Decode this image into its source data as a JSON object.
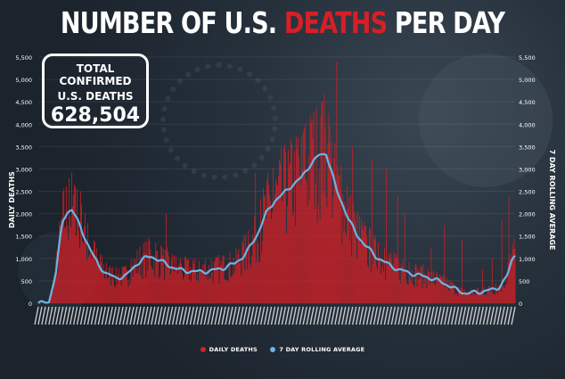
{
  "title": {
    "part1": "NUMBER OF U.S. ",
    "part2": "DEATHS",
    "part3": " PER DAY"
  },
  "total_box": {
    "line1": "TOTAL CONFIRMED",
    "line2": "U.S. DEATHS",
    "value": "628,504"
  },
  "colors": {
    "bars": "#d61f26",
    "rolling": "#6cb4e4",
    "title_accent": "#d61f26"
  },
  "chart_data": {
    "type": "bar",
    "ylabel": "DAILY DEATHS",
    "y2label": "7 DAY ROLLING AVERAGE",
    "ylim": [
      0,
      5500
    ],
    "y_ticks": [
      "0",
      "500",
      "1,000",
      "1,500",
      "2,000",
      "2,500",
      "3,000",
      "3,500",
      "4,000",
      "4,500",
      "5,000",
      "5,500"
    ],
    "legend": {
      "position": "bottom-center",
      "entries": [
        "DAILY DEATHS",
        "7 DAY ROLLING AVERAGE"
      ]
    },
    "x_range": [
      "early Mar 2020",
      "mid Aug 2021"
    ],
    "series": [
      {
        "name": "DAILY DEATHS",
        "kind": "bar",
        "profile_knots": [
          [
            0,
            0
          ],
          [
            5,
            0
          ],
          [
            12,
            30
          ],
          [
            20,
            700
          ],
          [
            27,
            1800
          ],
          [
            33,
            2050
          ],
          [
            38,
            2100
          ],
          [
            44,
            1850
          ],
          [
            52,
            1500
          ],
          [
            60,
            1150
          ],
          [
            68,
            850
          ],
          [
            78,
            650
          ],
          [
            88,
            560
          ],
          [
            100,
            620
          ],
          [
            110,
            850
          ],
          [
            118,
            980
          ],
          [
            128,
            1050
          ],
          [
            135,
            980
          ],
          [
            145,
            870
          ],
          [
            155,
            780
          ],
          [
            165,
            720
          ],
          [
            172,
            720
          ],
          [
            180,
            700
          ],
          [
            195,
            720
          ],
          [
            210,
            790
          ],
          [
            222,
            880
          ],
          [
            235,
            1100
          ],
          [
            247,
            1500
          ],
          [
            258,
            2000
          ],
          [
            268,
            2300
          ],
          [
            278,
            2450
          ],
          [
            288,
            2650
          ],
          [
            298,
            2800
          ],
          [
            308,
            3100
          ],
          [
            318,
            3300
          ],
          [
            326,
            3350
          ],
          [
            332,
            2950
          ],
          [
            338,
            2500
          ],
          [
            345,
            2200
          ],
          [
            352,
            1850
          ],
          [
            360,
            1550
          ],
          [
            370,
            1300
          ],
          [
            382,
            1050
          ],
          [
            395,
            880
          ],
          [
            408,
            750
          ],
          [
            420,
            680
          ],
          [
            432,
            620
          ],
          [
            445,
            560
          ],
          [
            455,
            480
          ],
          [
            465,
            400
          ],
          [
            475,
            280
          ],
          [
            485,
            220
          ],
          [
            495,
            240
          ],
          [
            505,
            270
          ],
          [
            515,
            300
          ],
          [
            523,
            380
          ],
          [
            531,
            600
          ],
          [
            537,
            1000
          ],
          [
            540,
            1100
          ]
        ],
        "spikes": [
          [
            44,
            2550
          ],
          [
            48,
            2500
          ],
          [
            145,
            2000
          ],
          [
            246,
            2900
          ],
          [
            302,
            4000
          ],
          [
            310,
            4100
          ],
          [
            320,
            4200
          ],
          [
            338,
            5400
          ],
          [
            356,
            3500
          ],
          [
            378,
            3200
          ],
          [
            394,
            3000
          ],
          [
            407,
            2400
          ],
          [
            415,
            2000
          ],
          [
            445,
            1250
          ],
          [
            460,
            1750
          ],
          [
            480,
            1400
          ],
          [
            503,
            750
          ],
          [
            514,
            1000
          ],
          [
            525,
            1850
          ],
          [
            533,
            2400
          ]
        ]
      },
      {
        "name": "7 DAY ROLLING AVERAGE",
        "kind": "line",
        "profile_knots": [
          [
            0,
            0
          ],
          [
            5,
            0
          ],
          [
            12,
            30
          ],
          [
            20,
            700
          ],
          [
            27,
            1800
          ],
          [
            33,
            2050
          ],
          [
            38,
            2100
          ],
          [
            44,
            1850
          ],
          [
            52,
            1500
          ],
          [
            60,
            1150
          ],
          [
            68,
            850
          ],
          [
            78,
            650
          ],
          [
            88,
            560
          ],
          [
            100,
            620
          ],
          [
            110,
            850
          ],
          [
            118,
            980
          ],
          [
            128,
            1050
          ],
          [
            135,
            980
          ],
          [
            145,
            870
          ],
          [
            155,
            780
          ],
          [
            165,
            720
          ],
          [
            172,
            720
          ],
          [
            180,
            700
          ],
          [
            195,
            720
          ],
          [
            210,
            790
          ],
          [
            222,
            880
          ],
          [
            235,
            1100
          ],
          [
            247,
            1500
          ],
          [
            258,
            2000
          ],
          [
            268,
            2300
          ],
          [
            278,
            2450
          ],
          [
            288,
            2650
          ],
          [
            298,
            2800
          ],
          [
            308,
            3100
          ],
          [
            318,
            3300
          ],
          [
            326,
            3350
          ],
          [
            332,
            2950
          ],
          [
            338,
            2500
          ],
          [
            345,
            2200
          ],
          [
            352,
            1850
          ],
          [
            360,
            1550
          ],
          [
            370,
            1300
          ],
          [
            382,
            1050
          ],
          [
            395,
            880
          ],
          [
            408,
            750
          ],
          [
            420,
            680
          ],
          [
            432,
            620
          ],
          [
            445,
            560
          ],
          [
            455,
            480
          ],
          [
            465,
            400
          ],
          [
            475,
            280
          ],
          [
            485,
            220
          ],
          [
            495,
            240
          ],
          [
            505,
            270
          ],
          [
            515,
            300
          ],
          [
            523,
            380
          ],
          [
            531,
            600
          ],
          [
            537,
            1000
          ],
          [
            540,
            1100
          ]
        ]
      }
    ]
  }
}
